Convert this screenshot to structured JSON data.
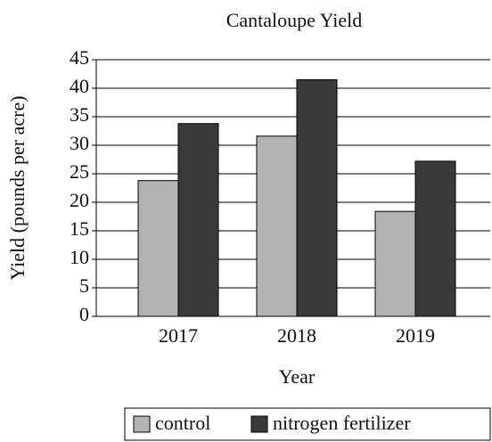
{
  "chart_data": {
    "type": "bar",
    "title": "Cantaloupe Yield",
    "x_label": "Year",
    "y_label": "Yield (pounds per acre)",
    "categories": [
      "2017",
      "2018",
      "2019"
    ],
    "series": [
      {
        "name": "control",
        "color": "#b3b3b3",
        "values": [
          23.8,
          31.6,
          18.4
        ]
      },
      {
        "name": "nitrogen fertilizer",
        "color": "#3a3a3a",
        "values": [
          33.8,
          41.5,
          27.2
        ]
      }
    ],
    "ylim": [
      0,
      45
    ],
    "yticks": [
      0,
      5,
      10,
      15,
      20,
      25,
      30,
      35,
      40,
      45
    ],
    "grid": true,
    "legend": "bottom"
  }
}
